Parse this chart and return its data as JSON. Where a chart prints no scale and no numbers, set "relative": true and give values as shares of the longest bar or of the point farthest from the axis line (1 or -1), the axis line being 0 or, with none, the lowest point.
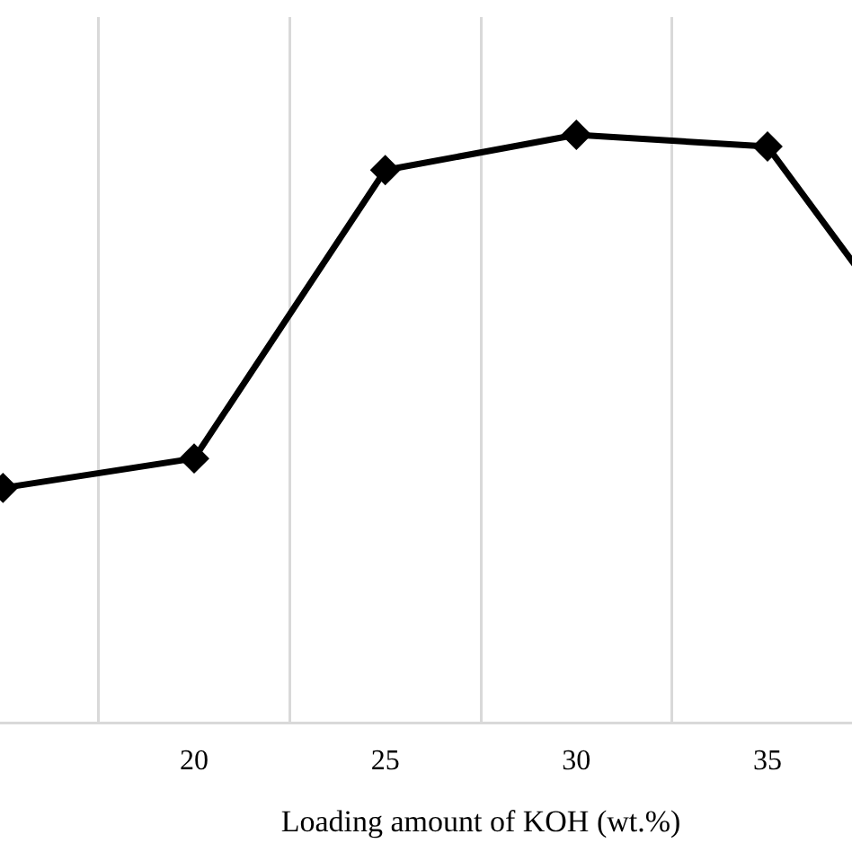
{
  "chart_data": {
    "type": "line",
    "xlabel": "Loading amount of KOH (wt.%)",
    "categories": [
      null,
      "20",
      "25",
      "30",
      "35",
      null
    ],
    "relative": true,
    "series": [
      {
        "color": "#000000",
        "values": [
          0.4,
          0.45,
          0.94,
          1,
          0.98,
          0.54
        ]
      }
    ],
    "marker": "diamond",
    "line_style": "solid",
    "grid": "x",
    "legend": false
  }
}
